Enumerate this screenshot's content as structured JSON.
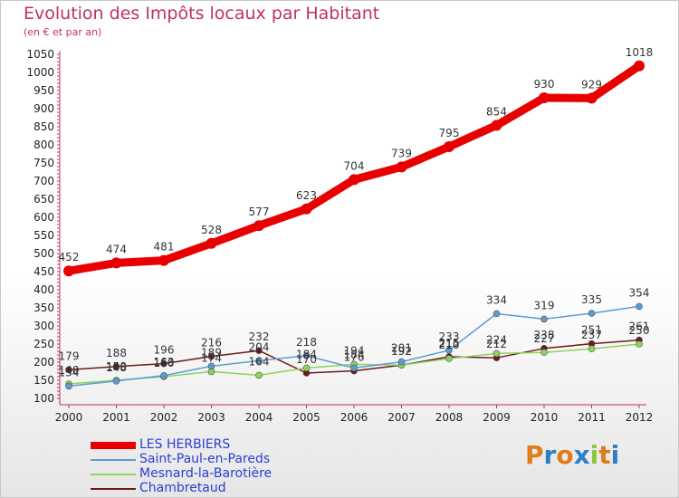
{
  "header": {
    "title": "Evolution des Impôts locaux par Habitant",
    "subtitle": "(en € et par an)"
  },
  "logo": {
    "letters": [
      "P",
      "r",
      "o",
      "x",
      "i",
      "t",
      "i"
    ],
    "colors": [
      "#e07c1a",
      "#2e7fc4",
      "#e07c1a",
      "#2e7fc4",
      "#8cc63f",
      "#e07c1a",
      "#2e7fc4"
    ]
  },
  "chart_data": {
    "type": "line",
    "title": "Evolution des Impôts locaux par Habitant",
    "subtitle": "(en € et par an)",
    "x": [
      "2000",
      "2001",
      "2002",
      "2003",
      "2004",
      "2005",
      "2006",
      "2007",
      "2008",
      "2009",
      "2010",
      "2011",
      "2012"
    ],
    "ylim": [
      100,
      1050
    ],
    "yticks": [
      100,
      150,
      200,
      250,
      300,
      350,
      400,
      450,
      500,
      550,
      600,
      650,
      700,
      750,
      800,
      850,
      900,
      950,
      1000,
      1050
    ],
    "grid": false,
    "legend_position": "bottom-left",
    "series": [
      {
        "name": "LES HERBIERS",
        "color": "#e80000",
        "values": [
          452,
          474,
          481,
          528,
          577,
          623,
          704,
          739,
          795,
          854,
          930,
          929,
          1018
        ],
        "labels": [
          "452",
          "474",
          "481",
          "528",
          "577",
          "623",
          "704",
          "739",
          "795",
          "854",
          "930",
          "929",
          "1018"
        ]
      },
      {
        "name": "Saint-Paul-en-Pareds",
        "color": "#5b9bd5",
        "values": [
          134,
          148,
          163,
          189,
          204,
          218,
          184,
          201,
          233,
          334,
          319,
          335,
          354
        ],
        "labels": [
          "134",
          "148",
          "163",
          "189",
          "204",
          "218",
          "184",
          "201",
          "233",
          "334",
          "319",
          "335",
          "354"
        ]
      },
      {
        "name": "Mesnard-la-Barotière",
        "color": "#8cd35a",
        "values": [
          140,
          150,
          160,
          174,
          164,
          184,
          194,
          192,
          210,
          224,
          227,
          237,
          250
        ],
        "labels": [
          "140",
          "150",
          "160",
          "174",
          "164",
          "184",
          "194",
          "192",
          "210",
          "224",
          "227",
          "237",
          "250"
        ]
      },
      {
        "name": "Chambretaud",
        "color": "#6b1b1b",
        "values": [
          179,
          188,
          196,
          216,
          232,
          170,
          176,
          192,
          215,
          212,
          238,
          251,
          261
        ],
        "labels": [
          "179",
          "188",
          "196",
          "216",
          "232",
          "170",
          "176",
          "192",
          "215",
          "212",
          "238",
          "251",
          "261"
        ]
      }
    ]
  }
}
